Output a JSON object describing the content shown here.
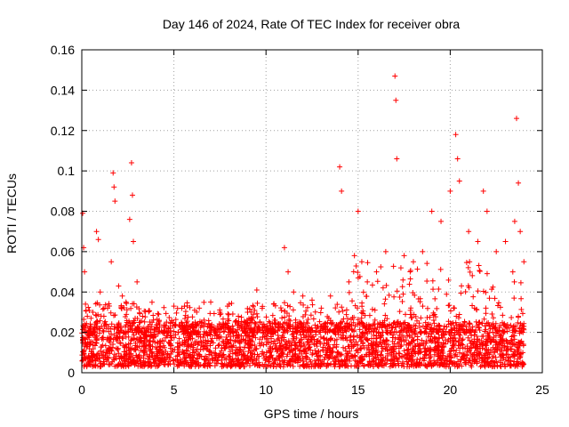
{
  "chart_data": {
    "type": "scatter",
    "title": "Day 146 of 2024, Rate Of TEC Index for receiver obra",
    "xlabel": "GPS time / hours",
    "ylabel": "ROTI / TECUs",
    "xlim": [
      0,
      25
    ],
    "ylim": [
      0,
      0.16
    ],
    "xticks": [
      0,
      5,
      10,
      15,
      20,
      25
    ],
    "yticks": [
      0,
      0.02,
      0.04,
      0.06,
      0.08,
      0.1,
      0.12,
      0.14,
      0.16
    ],
    "xtick_labels": [
      "0",
      "5",
      "10",
      "15",
      "20",
      "25"
    ],
    "ytick_labels": [
      "0",
      "0.02",
      "0.04",
      "0.06",
      "0.08",
      "0.1",
      "0.12",
      "0.14",
      "0.16"
    ],
    "grid": true,
    "marker": "+",
    "color": "#ff0000",
    "series": [
      {
        "name": "ROTI",
        "x": [
          0.05,
          0.1,
          0.15,
          0.2,
          0.3,
          0.4,
          0.5,
          0.6,
          0.8,
          0.9,
          1.0,
          1.2,
          1.4,
          1.6,
          1.7,
          1.75,
          1.8,
          2.0,
          2.2,
          2.4,
          2.6,
          2.7,
          2.75,
          2.8,
          3.0,
          3.3,
          3.6,
          4.0,
          4.5,
          5.0,
          5.5,
          6.0,
          6.5,
          7.0,
          7.5,
          8.0,
          8.5,
          9.0,
          9.5,
          10.0,
          10.5,
          11.0,
          11.2,
          11.5,
          12.0,
          12.5,
          13.0,
          13.5,
          14.0,
          14.1,
          14.5,
          14.8,
          15.0,
          15.2,
          15.5,
          16.0,
          16.5,
          17.0,
          17.05,
          17.1,
          17.5,
          18.0,
          18.5,
          19.0,
          19.5,
          20.0,
          20.3,
          20.4,
          20.5,
          21.0,
          21.5,
          21.8,
          22.0,
          22.5,
          23.0,
          23.5,
          23.6,
          23.7,
          23.8,
          24.0
        ],
        "y": [
          0.079,
          0.062,
          0.05,
          0.034,
          0.028,
          0.022,
          0.027,
          0.03,
          0.07,
          0.066,
          0.04,
          0.028,
          0.032,
          0.055,
          0.099,
          0.092,
          0.085,
          0.043,
          0.038,
          0.035,
          0.076,
          0.104,
          0.088,
          0.065,
          0.045,
          0.028,
          0.022,
          0.018,
          0.02,
          0.033,
          0.022,
          0.024,
          0.025,
          0.035,
          0.03,
          0.034,
          0.028,
          0.03,
          0.041,
          0.022,
          0.026,
          0.062,
          0.05,
          0.04,
          0.038,
          0.036,
          0.032,
          0.038,
          0.102,
          0.09,
          0.045,
          0.058,
          0.08,
          0.055,
          0.045,
          0.05,
          0.06,
          0.147,
          0.135,
          0.106,
          0.058,
          0.055,
          0.06,
          0.08,
          0.075,
          0.09,
          0.118,
          0.106,
          0.095,
          0.07,
          0.065,
          0.09,
          0.08,
          0.06,
          0.065,
          0.075,
          0.126,
          0.094,
          0.07,
          0.055
        ]
      }
    ],
    "baseline_band": {
      "description": "dense cloud of points between about 0.005 and 0.025 across the whole day",
      "x_range": [
        0,
        24
      ],
      "y_range": [
        0.003,
        0.025
      ]
    }
  }
}
